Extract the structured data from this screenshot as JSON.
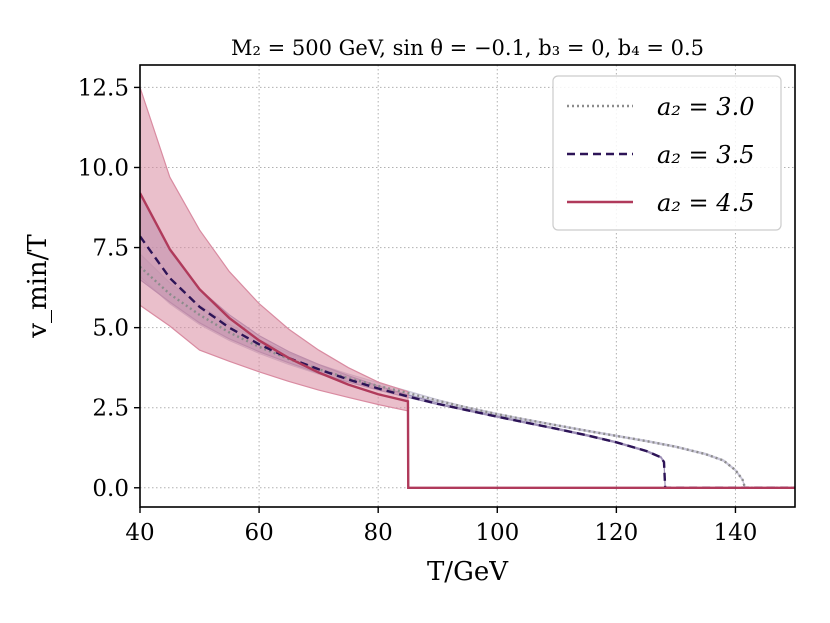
{
  "chart_data": {
    "type": "line",
    "title": "M₂ = 500 GeV, sin θ = −0.1, b₃ = 0, b₄ = 0.5",
    "xlabel": "T/GeV",
    "ylabel": "v_min/T",
    "xlim": [
      40,
      150
    ],
    "ylim": [
      -0.6,
      13.2
    ],
    "xticks": [
      40,
      60,
      80,
      100,
      120,
      140
    ],
    "yticks": [
      0.0,
      2.5,
      5.0,
      7.5,
      10.0,
      12.5
    ],
    "xtick_labels": [
      "40",
      "60",
      "80",
      "100",
      "120",
      "140"
    ],
    "ytick_labels": [
      "0.0",
      "2.5",
      "5.0",
      "7.5",
      "10.0",
      "12.5"
    ],
    "grid": true,
    "legend_position": "top-right",
    "series": [
      {
        "name": "a₂ = 3.0",
        "style": "dotted",
        "color": "#8c8c8c",
        "band_color": "#c9c6d8",
        "x": [
          40,
          45,
          50,
          55,
          60,
          65,
          70,
          75,
          80,
          85,
          90,
          95,
          100,
          105,
          110,
          115,
          120,
          125,
          130,
          135,
          138,
          140,
          141.2,
          141.6,
          145,
          150
        ],
        "y": [
          6.9,
          6.05,
          5.4,
          4.85,
          4.4,
          4.02,
          3.7,
          3.42,
          3.18,
          2.96,
          2.72,
          2.5,
          2.3,
          2.12,
          1.95,
          1.78,
          1.62,
          1.46,
          1.28,
          1.05,
          0.85,
          0.55,
          0.25,
          0.0,
          0.0,
          0.0
        ],
        "band_lower": [
          6.6,
          5.75,
          5.1,
          4.6,
          4.2,
          3.85,
          3.55,
          3.3,
          3.08,
          2.9,
          2.7,
          2.48,
          2.28,
          2.1,
          1.93,
          1.76,
          1.6,
          1.44,
          1.26,
          1.03,
          0.83,
          0.53,
          0.23,
          0.0,
          0.0,
          0.0
        ],
        "band_upper": [
          7.3,
          6.4,
          5.7,
          5.1,
          4.62,
          4.2,
          3.85,
          3.55,
          3.28,
          3.02,
          2.75,
          2.52,
          2.32,
          2.14,
          1.97,
          1.8,
          1.64,
          1.48,
          1.3,
          1.07,
          0.87,
          0.57,
          0.27,
          0.0,
          0.0,
          0.0
        ]
      },
      {
        "name": "a₂ = 3.5",
        "style": "dashed",
        "color": "#2d1457",
        "band_color": "#9d8fb6",
        "x": [
          40,
          45,
          50,
          55,
          60,
          65,
          70,
          75,
          80,
          85,
          90,
          95,
          100,
          105,
          110,
          115,
          120,
          125,
          127.5,
          128,
          128.2,
          135,
          140,
          150
        ],
        "y": [
          7.85,
          6.55,
          5.65,
          5.0,
          4.48,
          4.05,
          3.7,
          3.38,
          3.1,
          2.85,
          2.62,
          2.42,
          2.22,
          2.03,
          1.84,
          1.64,
          1.42,
          1.15,
          0.95,
          0.8,
          0.0,
          0.0,
          0.0,
          0.0
        ],
        "band_lower": [
          6.5,
          5.8,
          5.15,
          4.65,
          4.25,
          3.9,
          3.58,
          3.3,
          3.05,
          2.82,
          2.6,
          2.4,
          2.2,
          2.01,
          1.82,
          1.62,
          1.4,
          1.13,
          0.93,
          0.78,
          0.0,
          0.0,
          0.0,
          0.0
        ],
        "band_upper": [
          9.2,
          7.4,
          6.2,
          5.4,
          4.75,
          4.25,
          3.85,
          3.5,
          3.18,
          2.9,
          2.65,
          2.44,
          2.24,
          2.05,
          1.86,
          1.66,
          1.44,
          1.17,
          0.97,
          0.82,
          0.0,
          0.0,
          0.0,
          0.0
        ]
      },
      {
        "name": "a₂ = 4.5",
        "style": "solid",
        "color": "#b03a5b",
        "band_color": "#d98ba1",
        "x": [
          40,
          45,
          50,
          55,
          60,
          65,
          70,
          75,
          80,
          85,
          85.05,
          90,
          100,
          110,
          120,
          130,
          140,
          150
        ],
        "y": [
          9.2,
          7.45,
          6.2,
          5.3,
          4.6,
          4.05,
          3.6,
          3.22,
          2.92,
          2.7,
          0.0,
          0.0,
          0.0,
          0.0,
          0.0,
          0.0,
          0.0,
          0.0
        ],
        "band_lower": [
          5.7,
          5.05,
          4.3,
          3.95,
          3.62,
          3.32,
          3.05,
          2.82,
          2.6,
          2.4,
          0.0,
          0.0,
          0.0,
          0.0,
          0.0,
          0.0,
          0.0,
          0.0
        ],
        "band_upper": [
          12.5,
          9.7,
          8.05,
          6.75,
          5.75,
          4.95,
          4.3,
          3.75,
          3.3,
          3.0,
          0.0,
          0.0,
          0.0,
          0.0,
          0.0,
          0.0,
          0.0,
          0.0
        ],
        "band_end_x": 85
      }
    ]
  }
}
